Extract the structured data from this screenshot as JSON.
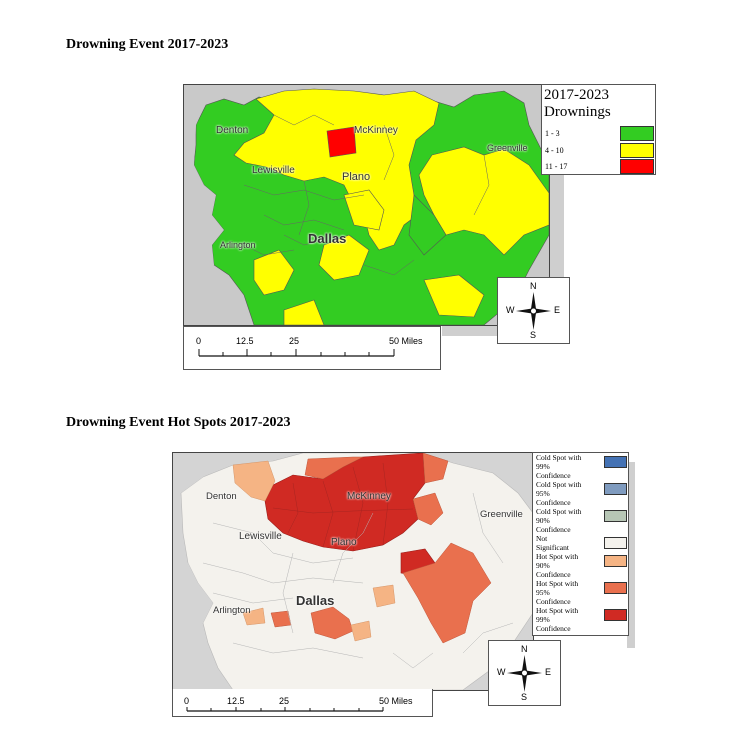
{
  "map1": {
    "title": "Drowning Event 2017-2023",
    "legend": {
      "title_line1": "2017-2023",
      "title_line2": "Drownings",
      "classes": [
        {
          "label": "1 - 3",
          "color": "#33cc22"
        },
        {
          "label": "4 - 10",
          "color": "#ffff00"
        },
        {
          "label": "11 - 17",
          "color": "#ff0000"
        }
      ]
    },
    "cities": {
      "denton": "Denton",
      "mckinney": "McKinney",
      "greenville": "Greenville",
      "lewisville": "Lewisville",
      "plano": "Plano",
      "dallas": "Dallas",
      "arlington": "Arlington"
    },
    "scale": {
      "ticks": [
        "0",
        "12.5",
        "25",
        "50 Miles"
      ]
    },
    "compass": {
      "n": "N",
      "s": "S",
      "e": "E",
      "w": "W"
    }
  },
  "map2": {
    "title": "Drowning Event Hot Spots 2017-2023",
    "legend": {
      "classes": [
        {
          "line1": "Cold Spot with",
          "line2": "99%",
          "line3": "Confidence",
          "color": "#4472b4"
        },
        {
          "line1": "Cold Spot with",
          "line2": "95%",
          "line3": "Confidence",
          "color": "#7f9bbf"
        },
        {
          "line1": "Cold Spot with",
          "line2": "90%",
          "line3": "Confidence",
          "color": "#b7c6b5"
        },
        {
          "line1": "Not",
          "line2": "Significant",
          "line3": "",
          "color": "#f4f2ed"
        },
        {
          "line1": "Hot Spot with",
          "line2": "90%",
          "line3": "Confidence",
          "color": "#f5b484"
        },
        {
          "line1": "Hot Spot with",
          "line2": "95%",
          "line3": "Confidence",
          "color": "#e9704e"
        },
        {
          "line1": "Hot Spot with",
          "line2": "99%",
          "line3": "Confidence",
          "color": "#d02a23"
        }
      ]
    },
    "cities": {
      "denton": "Denton",
      "mckinney": "McKinney",
      "greenville": "Greenville",
      "lewisville": "Lewisville",
      "plano": "Plano",
      "dallas": "Dallas",
      "arlington": "Arlington"
    },
    "scale": {
      "ticks": [
        "0",
        "12.5",
        "25",
        "50 Miles"
      ]
    },
    "compass": {
      "n": "N",
      "s": "S",
      "e": "E",
      "w": "W"
    }
  }
}
